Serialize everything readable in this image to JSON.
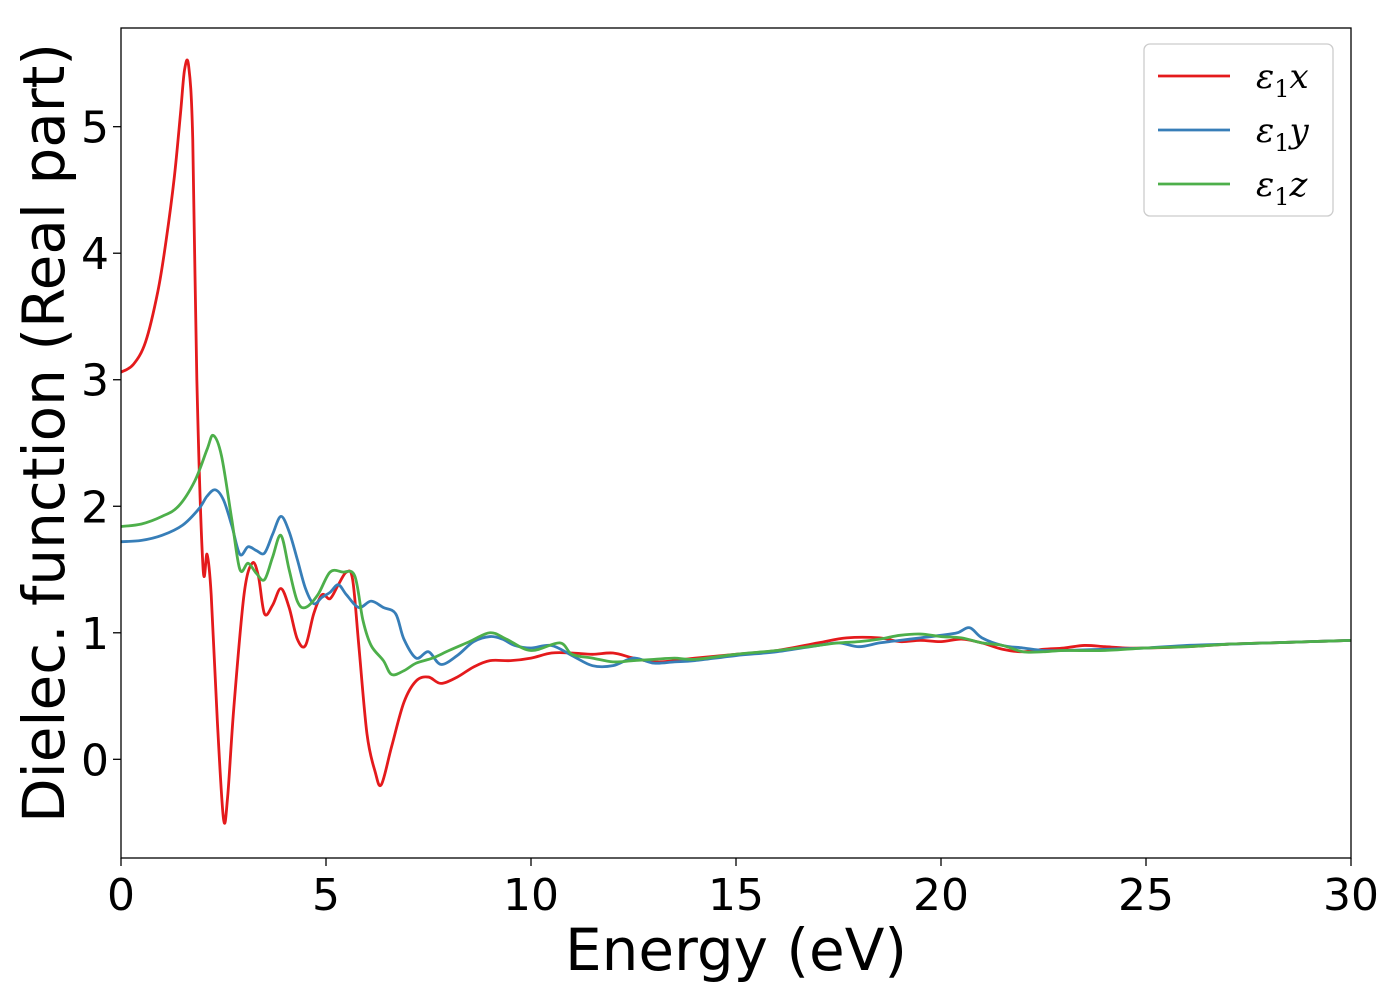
{
  "chart_data": {
    "type": "line",
    "xlabel": "Energy (eV)",
    "ylabel": "Dielec. function (Real part)",
    "xlim": [
      0,
      30
    ],
    "ylim": [
      -0.78,
      5.78
    ],
    "xticks": [
      0,
      5,
      10,
      15,
      20,
      25,
      30
    ],
    "yticks": [
      0,
      1,
      2,
      3,
      4,
      5
    ],
    "xtick_labels": [
      "0",
      "5",
      "10",
      "15",
      "20",
      "25",
      "30"
    ],
    "ytick_labels": [
      "0",
      "1",
      "2",
      "3",
      "4",
      "5"
    ],
    "grid": false,
    "legend_position": "top-right",
    "series": [
      {
        "name": "ε1x",
        "legend_base": "ε",
        "legend_sub": "1",
        "legend_tail": "x",
        "color": "#e41a1c",
        "x": [
          0,
          0.3,
          0.6,
          0.9,
          1.1,
          1.3,
          1.45,
          1.55,
          1.65,
          1.75,
          1.85,
          2.0,
          2.1,
          2.2,
          2.35,
          2.5,
          2.6,
          2.75,
          3.0,
          3.2,
          3.35,
          3.5,
          3.7,
          3.9,
          4.1,
          4.3,
          4.5,
          4.7,
          4.9,
          5.1,
          5.3,
          5.5,
          5.65,
          5.8,
          6.0,
          6.2,
          6.35,
          6.6,
          6.9,
          7.2,
          7.5,
          7.8,
          8.2,
          8.6,
          9.0,
          9.5,
          10.0,
          10.5,
          11.0,
          11.5,
          12.0,
          12.5,
          13.0,
          13.5,
          14.0,
          15.0,
          16.0,
          17.0,
          17.7,
          18.5,
          19.0,
          19.5,
          20.0,
          20.5,
          21.0,
          21.5,
          22.0,
          22.5,
          23.0,
          23.5,
          24.0,
          24.5,
          25.0,
          26.0,
          27.0,
          28.0,
          29.0,
          30.0
        ],
        "y": [
          3.06,
          3.12,
          3.3,
          3.7,
          4.1,
          4.6,
          5.1,
          5.45,
          5.48,
          4.9,
          3.0,
          1.52,
          1.62,
          1.3,
          0.3,
          -0.47,
          -0.3,
          0.4,
          1.3,
          1.55,
          1.45,
          1.15,
          1.22,
          1.35,
          1.2,
          0.95,
          0.9,
          1.15,
          1.3,
          1.27,
          1.38,
          1.48,
          1.42,
          0.9,
          0.2,
          -0.1,
          -0.2,
          0.1,
          0.45,
          0.62,
          0.65,
          0.6,
          0.65,
          0.73,
          0.78,
          0.78,
          0.8,
          0.84,
          0.84,
          0.83,
          0.84,
          0.8,
          0.77,
          0.78,
          0.8,
          0.83,
          0.86,
          0.92,
          0.96,
          0.96,
          0.93,
          0.94,
          0.93,
          0.95,
          0.92,
          0.87,
          0.85,
          0.87,
          0.88,
          0.9,
          0.89,
          0.88,
          0.88,
          0.89,
          0.91,
          0.92,
          0.93,
          0.94
        ]
      },
      {
        "name": "ε1y",
        "legend_base": "ε",
        "legend_sub": "1",
        "legend_tail": "y",
        "color": "#377eb8",
        "x": [
          0,
          0.5,
          1.0,
          1.5,
          1.9,
          2.1,
          2.3,
          2.5,
          2.7,
          2.9,
          3.1,
          3.3,
          3.5,
          3.7,
          3.9,
          4.1,
          4.3,
          4.5,
          4.7,
          4.9,
          5.1,
          5.3,
          5.5,
          5.8,
          6.1,
          6.4,
          6.7,
          6.9,
          7.2,
          7.5,
          7.8,
          8.2,
          8.6,
          9.0,
          9.3,
          9.6,
          10.0,
          10.5,
          11.0,
          11.5,
          12.0,
          12.5,
          13.0,
          13.5,
          14.0,
          15.0,
          16.0,
          17.0,
          17.5,
          18.0,
          18.5,
          19.0,
          19.5,
          20.0,
          20.4,
          20.7,
          21.0,
          21.5,
          22.0,
          22.5,
          23.0,
          24.0,
          25.0,
          26.0,
          27.0,
          28.0,
          29.0,
          30.0
        ],
        "y": [
          1.72,
          1.73,
          1.77,
          1.85,
          1.98,
          2.08,
          2.13,
          2.05,
          1.85,
          1.62,
          1.68,
          1.65,
          1.63,
          1.78,
          1.92,
          1.8,
          1.58,
          1.35,
          1.23,
          1.28,
          1.32,
          1.38,
          1.3,
          1.2,
          1.25,
          1.2,
          1.15,
          0.95,
          0.8,
          0.85,
          0.75,
          0.82,
          0.93,
          0.97,
          0.95,
          0.9,
          0.88,
          0.9,
          0.82,
          0.74,
          0.74,
          0.8,
          0.76,
          0.77,
          0.78,
          0.82,
          0.85,
          0.9,
          0.92,
          0.89,
          0.92,
          0.94,
          0.96,
          0.98,
          1.0,
          1.04,
          0.96,
          0.9,
          0.88,
          0.86,
          0.86,
          0.87,
          0.88,
          0.9,
          0.91,
          0.92,
          0.93,
          0.94
        ]
      },
      {
        "name": "ε1z",
        "legend_base": "ε",
        "legend_sub": "1",
        "legend_tail": "z",
        "color": "#4daf4a",
        "x": [
          0,
          0.5,
          1.0,
          1.4,
          1.8,
          2.1,
          2.25,
          2.45,
          2.7,
          2.9,
          3.1,
          3.3,
          3.5,
          3.7,
          3.9,
          4.1,
          4.3,
          4.5,
          4.8,
          5.1,
          5.4,
          5.7,
          5.9,
          6.1,
          6.4,
          6.6,
          6.9,
          7.2,
          7.6,
          8.0,
          8.5,
          9.0,
          9.4,
          10.0,
          10.7,
          11.0,
          11.5,
          12.0,
          12.5,
          13.0,
          13.5,
          14.0,
          15.0,
          16.0,
          17.0,
          17.5,
          18.0,
          18.5,
          19.0,
          19.5,
          20.0,
          20.5,
          21.0,
          21.5,
          22.0,
          22.5,
          23.0,
          24.0,
          25.0,
          26.0,
          27.0,
          28.0,
          29.0,
          30.0
        ],
        "y": [
          1.84,
          1.86,
          1.92,
          2.0,
          2.2,
          2.45,
          2.56,
          2.4,
          1.9,
          1.5,
          1.55,
          1.47,
          1.42,
          1.6,
          1.77,
          1.5,
          1.25,
          1.2,
          1.3,
          1.48,
          1.48,
          1.45,
          1.1,
          0.9,
          0.78,
          0.67,
          0.7,
          0.76,
          0.8,
          0.86,
          0.93,
          1.0,
          0.95,
          0.86,
          0.92,
          0.83,
          0.8,
          0.77,
          0.78,
          0.79,
          0.8,
          0.79,
          0.83,
          0.86,
          0.9,
          0.92,
          0.93,
          0.95,
          0.98,
          0.99,
          0.97,
          0.96,
          0.92,
          0.9,
          0.85,
          0.85,
          0.86,
          0.86,
          0.88,
          0.89,
          0.91,
          0.92,
          0.93,
          0.94
        ]
      }
    ]
  }
}
